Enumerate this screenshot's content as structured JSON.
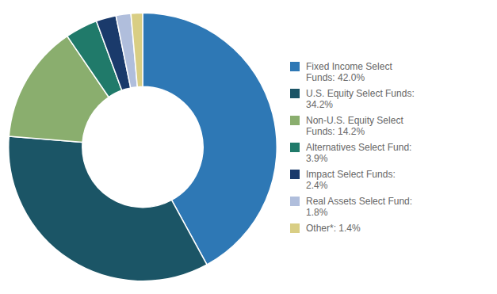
{
  "chart_data": {
    "type": "doughnut",
    "categories": [
      "Fixed Income Select\nFunds: 42.0%",
      "U.S. Equity Select Funds:\n34.2%",
      "Non-U.S. Equity Select\nFunds: 14.2%",
      "Alternatives Select Fund:\n3.9%",
      "Impact Select Funds:\n2.4%",
      "Real Assets Select Fund:\n1.8%",
      "Other*: 1.4%"
    ],
    "values": [
      42.0,
      34.2,
      14.2,
      3.9,
      2.4,
      1.8,
      1.4
    ],
    "colors": [
      "#2E78B5",
      "#1B5566",
      "#8AAE6E",
      "#207A6A",
      "#1A3A6B",
      "#B0BEDC",
      "#D9CE84"
    ],
    "legend": "right"
  }
}
